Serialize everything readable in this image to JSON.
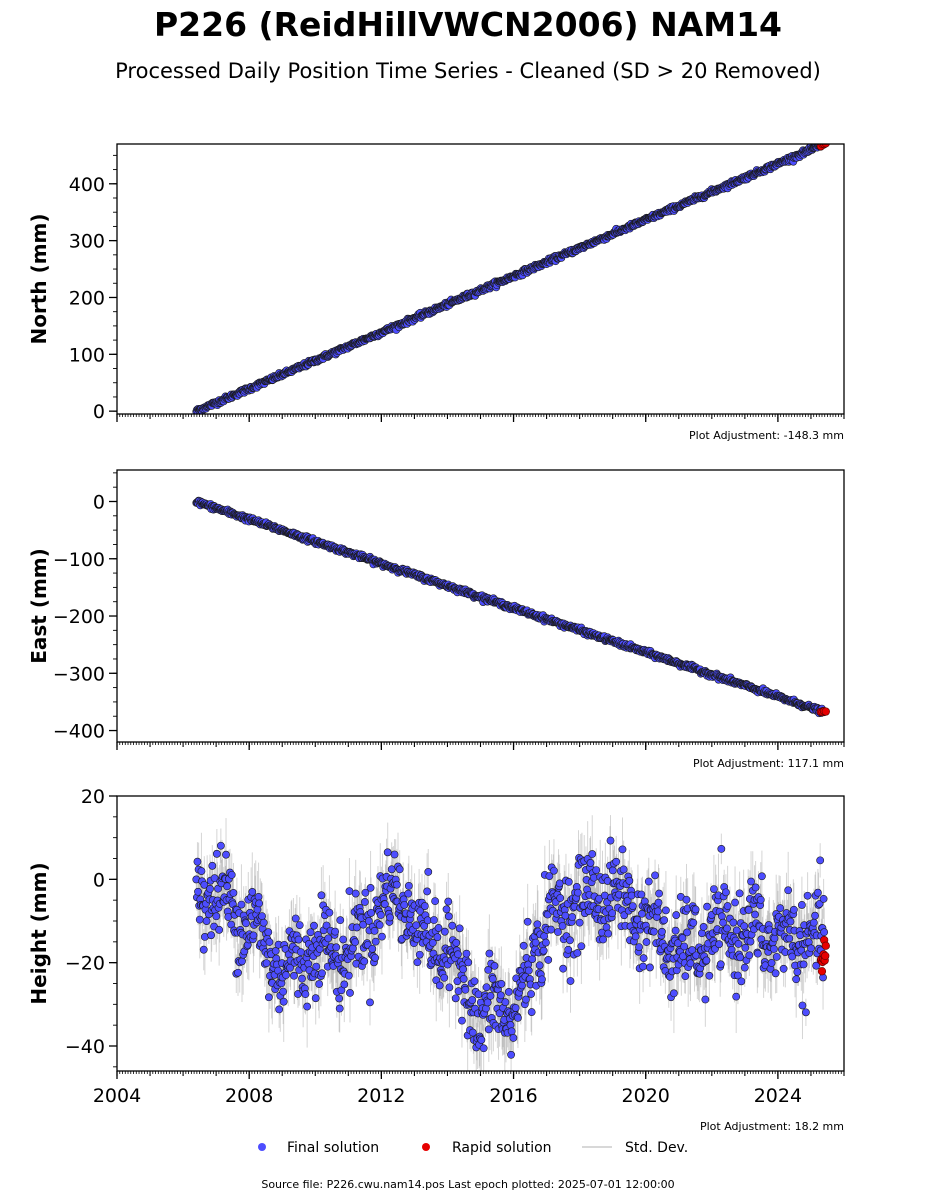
{
  "title": "P226 (ReidHillVWCN2006) NAM14",
  "subtitle": "Processed Daily Position Time Series - Cleaned (SD > 20 Removed)",
  "legend": [
    {
      "label": "Final solution",
      "color": "#4d4dff",
      "kind": "marker"
    },
    {
      "label": "Rapid solution",
      "color": "#e60000",
      "kind": "marker"
    },
    {
      "label": "Std. Dev.",
      "color": "#bbbbbb",
      "kind": "line"
    }
  ],
  "source_text": "Source file: P226.cwu.nam14.pos  Last epoch plotted: 2025-07-01 12:00:00",
  "colors": {
    "final": "#4d4dff",
    "rapid": "#e60000",
    "marker_edge": "#1a1a1a",
    "stddev": "#888888"
  },
  "chart_data": [
    {
      "type": "scatter",
      "panel": "north",
      "ylabel": "North (mm)",
      "adjustment": "Plot Adjustment: -148.3 mm",
      "xlim": [
        2004,
        2026
      ],
      "ylim": [
        -5,
        470
      ],
      "y_ticks": [
        0,
        100,
        200,
        300,
        400
      ],
      "y_tick_labels": [
        "0",
        "100",
        "200",
        "300",
        "400"
      ],
      "x_ticks": [
        2004,
        2008,
        2012,
        2016,
        2020,
        2024
      ],
      "show_x_labels": false,
      "trend": {
        "x": [
          2006.4,
          2025.4
        ],
        "y": [
          0,
          470
        ]
      },
      "noise_mm": 2,
      "sd_mm": 2.5,
      "seasonal_mm": 0,
      "rapid": {
        "x_range": [
          2025.3,
          2025.45
        ],
        "y_range": [
          466,
          472
        ],
        "count": 4
      }
    },
    {
      "type": "scatter",
      "panel": "east",
      "ylabel": "East (mm)",
      "adjustment": "Plot Adjustment: 117.1 mm",
      "xlim": [
        2004,
        2026
      ],
      "ylim": [
        -420,
        55
      ],
      "y_ticks": [
        -400,
        -300,
        -200,
        -100,
        0
      ],
      "y_tick_labels": [
        "−400",
        "−300",
        "−200",
        "−100",
        "0"
      ],
      "x_ticks": [
        2004,
        2008,
        2012,
        2016,
        2020,
        2024
      ],
      "show_x_labels": false,
      "trend": {
        "x": [
          2006.4,
          2025.4
        ],
        "y": [
          0,
          -368
        ]
      },
      "noise_mm": 2,
      "sd_mm": 2.5,
      "seasonal_mm": 0,
      "rapid": {
        "x_range": [
          2025.3,
          2025.45
        ],
        "y_range": [
          -371,
          -366
        ],
        "count": 4
      }
    },
    {
      "type": "scatter",
      "panel": "height",
      "ylabel": "Height (mm)",
      "adjustment": "Plot Adjustment: 18.2 mm",
      "xlim": [
        2004,
        2026
      ],
      "ylim": [
        -46,
        20
      ],
      "y_ticks": [
        -40,
        -20,
        0,
        20
      ],
      "y_tick_labels": [
        "−40",
        "−20",
        "0",
        "20"
      ],
      "x_ticks": [
        2004,
        2008,
        2012,
        2016,
        2020,
        2024
      ],
      "x_tick_labels": [
        "2004",
        "2008",
        "2012",
        "2016",
        "2020",
        "2024"
      ],
      "show_x_labels": true,
      "trend_points": {
        "x": [
          2006.4,
          2007.0,
          2008.0,
          2009.0,
          2010.0,
          2011.0,
          2012.0,
          2012.5,
          2013.0,
          2014.0,
          2014.5,
          2015.0,
          2015.5,
          2016.0,
          2016.5,
          2017.0,
          2018.0,
          2019.0,
          2020.0,
          2021.0,
          2022.0,
          2023.0,
          2024.0,
          2025.4
        ],
        "y": [
          -2,
          -4,
          -10,
          -22,
          -16,
          -18,
          -6,
          -3,
          -10,
          -18,
          -22,
          -36,
          -28,
          -34,
          -20,
          -10,
          -5,
          -3,
          -10,
          -18,
          -14,
          -12,
          -14,
          -15
        ]
      },
      "noise_mm": 5,
      "sd_mm": 5,
      "seasonal_mm": 3,
      "rapid": {
        "x_range": [
          2025.3,
          2025.45
        ],
        "y_range": [
          -23,
          -13
        ],
        "count": 10
      }
    }
  ]
}
